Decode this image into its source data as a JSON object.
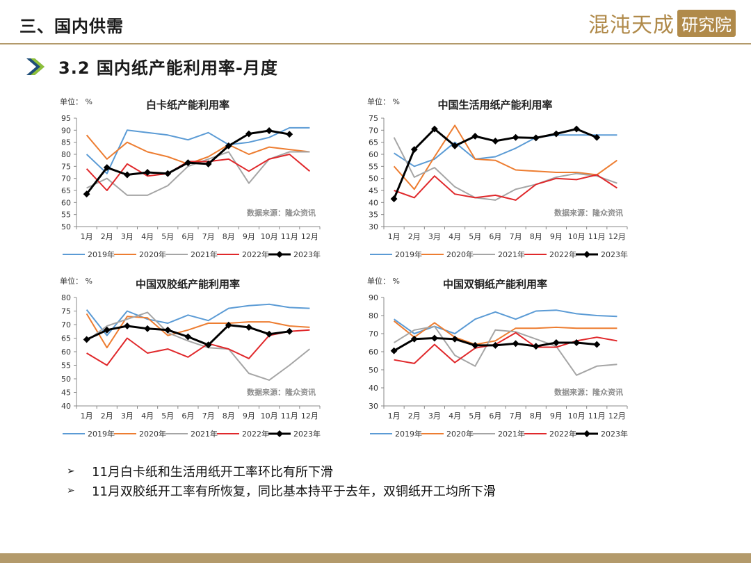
{
  "header": {
    "section_title": "三、国内供需",
    "logo_text": "混沌天成",
    "logo_box": "研究院",
    "subtitle": "3.2 国内纸产能利用率-月度"
  },
  "colors": {
    "2019年": "#5b9bd5",
    "2020年": "#ed7d31",
    "2021年": "#a5a5a5",
    "2022年": "#e0282b",
    "2023年": "#000000",
    "accent": "#b39a6b"
  },
  "chart_data": [
    {
      "type": "line",
      "title": "白卡纸产能利用率",
      "unit_label": "单位：  %",
      "source": "数据来源：隆众资讯",
      "categories": [
        "1月",
        "2月",
        "3月",
        "4月",
        "5月",
        "6月",
        "7月",
        "8月",
        "9月",
        "10月",
        "11月",
        "12月"
      ],
      "ylim": [
        50,
        95
      ],
      "yticks": [
        50,
        55,
        60,
        65,
        70,
        75,
        80,
        85,
        90,
        95
      ],
      "legend_position": "bottom",
      "series": [
        {
          "name": "2019年",
          "values": [
            80,
            72,
            90,
            89,
            88,
            86,
            89,
            84,
            85,
            87,
            91,
            91
          ]
        },
        {
          "name": "2020年",
          "values": [
            88,
            78,
            85,
            81,
            79,
            76,
            79,
            84,
            80,
            83,
            82,
            81
          ]
        },
        {
          "name": "2021年",
          "values": [
            66,
            70,
            63,
            63,
            67,
            75,
            78,
            81,
            68,
            78,
            81,
            81
          ]
        },
        {
          "name": "2022年",
          "values": [
            74,
            65,
            76,
            71,
            72,
            77,
            77,
            78,
            73,
            78,
            80,
            73
          ]
        },
        {
          "name": "2023年",
          "values": [
            63.5,
            74.5,
            71.5,
            72.5,
            72,
            76.5,
            76,
            83.5,
            88.5,
            89.8,
            88.3,
            null
          ]
        }
      ]
    },
    {
      "type": "line",
      "title": "中国生活用纸产能利用率",
      "unit_label": "单位：  %",
      "source": "数据来源：隆众资讯",
      "categories": [
        "1月",
        "2月",
        "3月",
        "4月",
        "5月",
        "6月",
        "7月",
        "8月",
        "9月",
        "10月",
        "11月",
        "12月"
      ],
      "ylim": [
        30,
        75
      ],
      "yticks": [
        30,
        35,
        40,
        45,
        50,
        55,
        60,
        65,
        70,
        75
      ],
      "legend_position": "bottom",
      "series": [
        {
          "name": "2019年",
          "values": [
            60.5,
            55,
            58,
            65,
            58,
            59,
            62.5,
            67,
            68,
            68,
            68,
            68
          ]
        },
        {
          "name": "2020年",
          "values": [
            55,
            45.5,
            59,
            72,
            58,
            57.5,
            53.5,
            53,
            52.5,
            52.5,
            51.5,
            57.5
          ]
        },
        {
          "name": "2021年",
          "values": [
            67,
            50.5,
            54.5,
            46.5,
            42,
            41,
            45.5,
            47.5,
            50.5,
            52,
            51,
            48
          ]
        },
        {
          "name": "2022年",
          "values": [
            45,
            42,
            51,
            43.5,
            42,
            43,
            41,
            47.5,
            50,
            49.5,
            51.5,
            46
          ]
        },
        {
          "name": "2023年",
          "values": [
            41.5,
            62,
            70.5,
            63.5,
            67.5,
            65.5,
            67,
            66.8,
            68.5,
            70.5,
            67,
            null
          ]
        }
      ]
    },
    {
      "type": "line",
      "title": "中国双胶纸产能利用率",
      "unit_label": "单位：  %",
      "source": "数据来源：隆众资讯",
      "categories": [
        "1月",
        "2月",
        "3月",
        "4月",
        "5月",
        "6月",
        "7月",
        "8月",
        "9月",
        "10月",
        "11月",
        "12月"
      ],
      "ylim": [
        40,
        80
      ],
      "yticks": [
        40,
        45,
        50,
        55,
        60,
        65,
        70,
        75,
        80
      ],
      "legend_position": "bottom",
      "series": [
        {
          "name": "2019年",
          "values": [
            75.5,
            66,
            75,
            72,
            70.5,
            73.5,
            71.5,
            76,
            77,
            77.5,
            76.3,
            76
          ]
        },
        {
          "name": "2020年",
          "values": [
            74,
            61.5,
            73,
            72.5,
            66,
            68,
            70.5,
            70.5,
            71,
            71,
            69.5,
            69
          ]
        },
        {
          "name": "2021年",
          "values": [
            64,
            69.5,
            72,
            74.5,
            67,
            64,
            61.5,
            61,
            52,
            49.5,
            55,
            61
          ]
        },
        {
          "name": "2022年",
          "values": [
            59.5,
            55,
            65,
            59.5,
            61,
            58,
            63,
            61,
            57.5,
            66,
            67.5,
            68
          ]
        },
        {
          "name": "2023年",
          "values": [
            64.5,
            68,
            69.5,
            68.5,
            68,
            65.5,
            62.5,
            69.8,
            69,
            66.5,
            67.5,
            null
          ]
        }
      ]
    },
    {
      "type": "line",
      "title": "中国双铜纸产能利用率",
      "unit_label": "单位：  %",
      "source": "数据来源：隆众资讯",
      "categories": [
        "1月",
        "2月",
        "3月",
        "4月",
        "5月",
        "6月",
        "7月",
        "8月",
        "9月",
        "10月",
        "11月",
        "12月"
      ],
      "ylim": [
        30,
        90
      ],
      "yticks": [
        30,
        40,
        50,
        60,
        70,
        80,
        90
      ],
      "legend_position": "bottom",
      "series": [
        {
          "name": "2019年",
          "values": [
            78,
            70,
            74,
            70,
            78,
            82,
            78,
            82.5,
            83,
            81,
            80,
            79.5
          ]
        },
        {
          "name": "2020年",
          "values": [
            77,
            68,
            76,
            68,
            64,
            66,
            73,
            73,
            73.5,
            73,
            73,
            73
          ]
        },
        {
          "name": "2021年",
          "values": [
            65,
            72,
            74,
            58,
            52,
            72,
            71,
            67,
            63,
            47,
            52,
            53
          ]
        },
        {
          "name": "2022年",
          "values": [
            55.5,
            53.5,
            64,
            54,
            62,
            64,
            70.5,
            62.5,
            62.5,
            66,
            68,
            66
          ]
        },
        {
          "name": "2023年",
          "values": [
            60.5,
            67,
            67.5,
            67,
            63.5,
            63.5,
            64.5,
            63,
            65,
            65,
            64,
            null
          ]
        }
      ]
    }
  ],
  "bullets": [
    "11月白卡纸和生活用纸开工率环比有所下滑",
    "11月双胶纸开工率有所恢复，同比基本持平于去年，双铜纸开工均所下滑"
  ]
}
